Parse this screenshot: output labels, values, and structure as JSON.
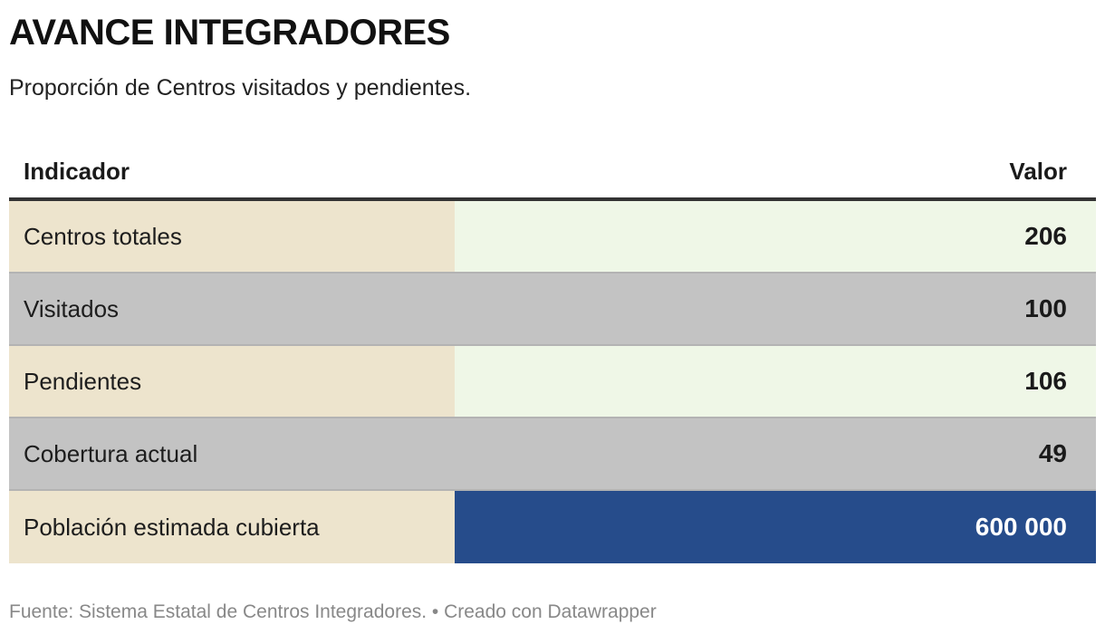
{
  "header": {
    "title": "AVANCE INTEGRADORES",
    "subtitle": "Proporción de Centros visitados y pendientes."
  },
  "table": {
    "columns": [
      "Indicador",
      "Valor"
    ],
    "rows": [
      {
        "label": "Centros totales",
        "value": "206",
        "label_bg": "#ede4cd",
        "value_bg": "#eff7e7",
        "value_color": "#1a1a1a"
      },
      {
        "label": "Visitados",
        "value": "100",
        "label_bg": "#c3c3c3",
        "value_bg": "#c3c3c3",
        "value_color": "#1a1a1a"
      },
      {
        "label": "Pendientes",
        "value": "106",
        "label_bg": "#ede4cd",
        "value_bg": "#eff7e7",
        "value_color": "#1a1a1a"
      },
      {
        "label": "Cobertura actual",
        "value": "49",
        "label_bg": "#c3c3c3",
        "value_bg": "#c3c3c3",
        "value_color": "#1a1a1a"
      },
      {
        "label": "Población estimada cubierta",
        "value": "600 000",
        "label_bg": "#ede4cd",
        "value_bg": "#264c8b",
        "value_color": "#ffffff"
      }
    ]
  },
  "footer": {
    "text": "Fuente: Sistema Estatal de Centros Integradores. • Creado con Datawrapper"
  },
  "chart_data": {
    "type": "table",
    "title": "AVANCE INTEGRADORES",
    "subtitle": "Proporción de Centros visitados y pendientes.",
    "columns": [
      "Indicador",
      "Valor"
    ],
    "categories": [
      "Centros totales",
      "Visitados",
      "Pendientes",
      "Cobertura actual",
      "Población estimada cubierta"
    ],
    "values": [
      206,
      100,
      106,
      49,
      600000
    ],
    "source": "Fuente: Sistema Estatal de Centros Integradores. • Creado con Datawrapper"
  }
}
